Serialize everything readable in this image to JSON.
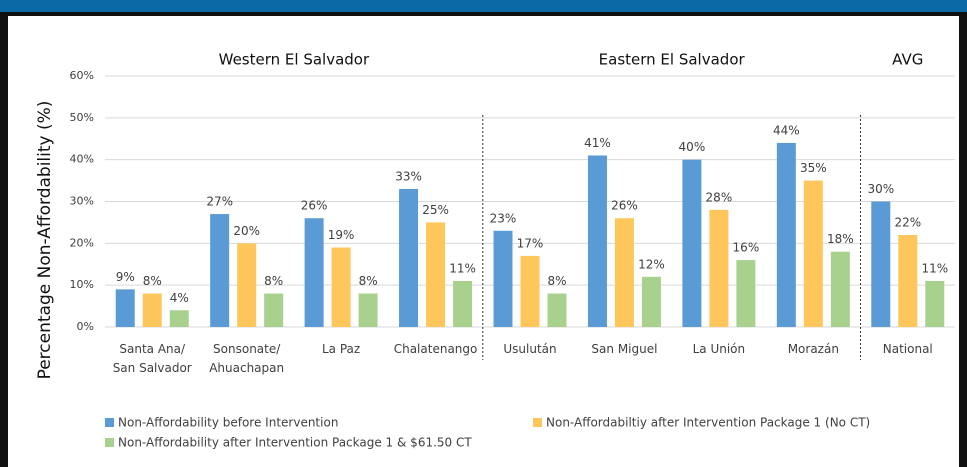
{
  "chart_data": {
    "type": "bar",
    "y_label": "Percentage Non-Affordability (%)",
    "group_labels": [
      "Western El Salvador",
      "Eastern El Salvador",
      "AVG"
    ],
    "categories": [
      "Santa Ana/\nSan Salvador",
      "Sonsonate/\nAhuachapan",
      "La Paz",
      "Chalatenango",
      "Usulután",
      "San Miguel",
      "La Unión",
      "Morazán",
      "National"
    ],
    "series": [
      {
        "name": "Non-Affordability before Intervention",
        "color": "#5b9bd5",
        "values": [
          9,
          27,
          26,
          33,
          23,
          41,
          40,
          44,
          30
        ],
        "value_labels": [
          "9%",
          "27%",
          "26%",
          "33%",
          "23%",
          "41%",
          "40%",
          "44%",
          "30%"
        ]
      },
      {
        "name": "Non-Affordabiltiy after Intervention Package 1 (No CT)",
        "color": "#ffc65c",
        "values": [
          8,
          20,
          19,
          25,
          17,
          26,
          28,
          35,
          22
        ],
        "value_labels": [
          "8%",
          "20%",
          "19%",
          "25%",
          "17%",
          "26%",
          "28%",
          "35%",
          "22%"
        ]
      },
      {
        "name": "Non-Affordability after Intervention Package 1 & $61.50 CT",
        "color": "#a9d18e",
        "values": [
          4,
          8,
          8,
          11,
          8,
          12,
          16,
          18,
          11
        ],
        "value_labels": [
          "4%",
          "8%",
          "8%",
          "11%",
          "8%",
          "12%",
          "16%",
          "18%",
          "11%"
        ]
      }
    ],
    "ylim": [
      0,
      60
    ],
    "yticks": [
      {
        "value": 0,
        "label": "0%"
      },
      {
        "value": 10,
        "label": "10%"
      },
      {
        "value": 20,
        "label": "20%"
      },
      {
        "value": 30,
        "label": "30%"
      },
      {
        "value": 40,
        "label": "40%"
      },
      {
        "value": 50,
        "label": "50%"
      },
      {
        "value": 60,
        "label": "60%"
      }
    ],
    "grid": true
  }
}
